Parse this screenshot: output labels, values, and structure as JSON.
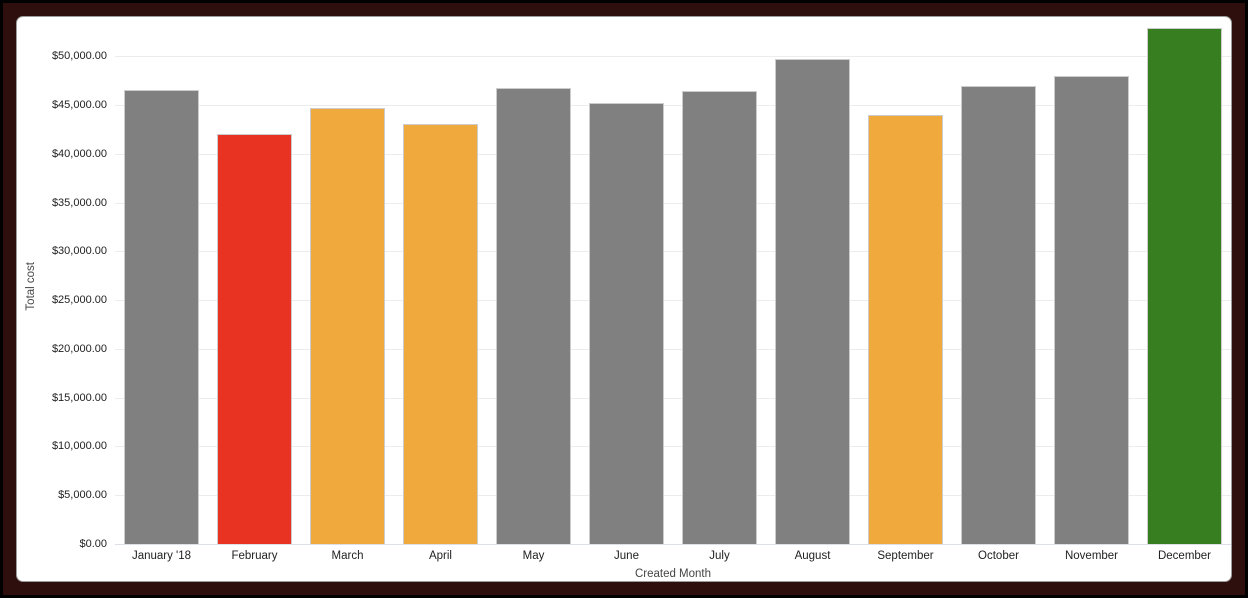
{
  "window": {
    "background": "#000000",
    "frame_color": "#2f0e0e",
    "card_background": "#ffffff",
    "card_border": "#9c9c9c"
  },
  "chart_data": {
    "type": "bar",
    "title": "",
    "xlabel": "Created Month",
    "ylabel": "Total cost",
    "categories": [
      "January '18",
      "February",
      "March",
      "April",
      "May",
      "June",
      "July",
      "August",
      "September",
      "October",
      "November",
      "December"
    ],
    "values": [
      46500,
      42000,
      44700,
      43100,
      46800,
      45200,
      46400,
      49700,
      44000,
      47000,
      48000,
      52900
    ],
    "bar_colors": [
      "#808080",
      "#E83323",
      "#F0A93C",
      "#F0A93C",
      "#808080",
      "#808080",
      "#808080",
      "#808080",
      "#F0A93C",
      "#808080",
      "#808080",
      "#377E21"
    ],
    "color_legend": {
      "default": "#808080",
      "red": "#E83323",
      "orange": "#F0A93C",
      "green": "#377E21"
    },
    "ylim": [
      0,
      52900
    ],
    "ytick_values": [
      0,
      5000,
      10000,
      15000,
      20000,
      25000,
      30000,
      35000,
      40000,
      45000,
      50000
    ],
    "ytick_labels": [
      "$0.00",
      "$5,000.00",
      "$10,000.00",
      "$15,000.00",
      "$20,000.00",
      "$25,000.00",
      "$30,000.00",
      "$35,000.00",
      "$40,000.00",
      "$45,000.00",
      "$50,000.00"
    ],
    "grid": true,
    "gridline_color": "#ececec",
    "baseline_color": "#dcdfe6",
    "bar_stroke_color": "#cccccc",
    "legend": "none"
  }
}
